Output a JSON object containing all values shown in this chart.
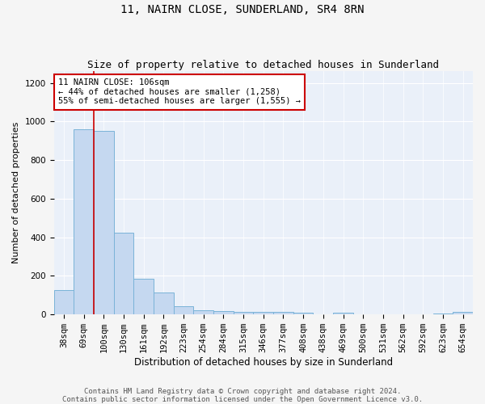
{
  "title": "11, NAIRN CLOSE, SUNDERLAND, SR4 8RN",
  "subtitle": "Size of property relative to detached houses in Sunderland",
  "xlabel": "Distribution of detached houses by size in Sunderland",
  "ylabel": "Number of detached properties",
  "categories": [
    "38sqm",
    "69sqm",
    "100sqm",
    "130sqm",
    "161sqm",
    "192sqm",
    "223sqm",
    "254sqm",
    "284sqm",
    "315sqm",
    "346sqm",
    "377sqm",
    "408sqm",
    "438sqm",
    "469sqm",
    "500sqm",
    "531sqm",
    "562sqm",
    "592sqm",
    "623sqm",
    "654sqm"
  ],
  "values": [
    125,
    960,
    950,
    425,
    185,
    115,
    43,
    20,
    17,
    12,
    13,
    13,
    10,
    2,
    10,
    2,
    2,
    2,
    2,
    5,
    12
  ],
  "bar_color": "#c5d8f0",
  "bar_edge_color": "#7ab3d8",
  "vline_x_index": 1.5,
  "vline_color": "#cc0000",
  "annotation_text": "11 NAIRN CLOSE: 106sqm\n← 44% of detached houses are smaller (1,258)\n55% of semi-detached houses are larger (1,555) →",
  "annotation_box_color": "#ffffff",
  "annotation_box_edge": "#cc0000",
  "ylim": [
    0,
    1260
  ],
  "yticks": [
    0,
    200,
    400,
    600,
    800,
    1000,
    1200
  ],
  "background_color": "#eaf0f9",
  "footer_text": "Contains HM Land Registry data © Crown copyright and database right 2024.\nContains public sector information licensed under the Open Government Licence v3.0.",
  "title_fontsize": 10,
  "subtitle_fontsize": 9,
  "xlabel_fontsize": 8.5,
  "ylabel_fontsize": 8,
  "tick_fontsize": 7.5,
  "annotation_fontsize": 7.5,
  "footer_fontsize": 6.5
}
